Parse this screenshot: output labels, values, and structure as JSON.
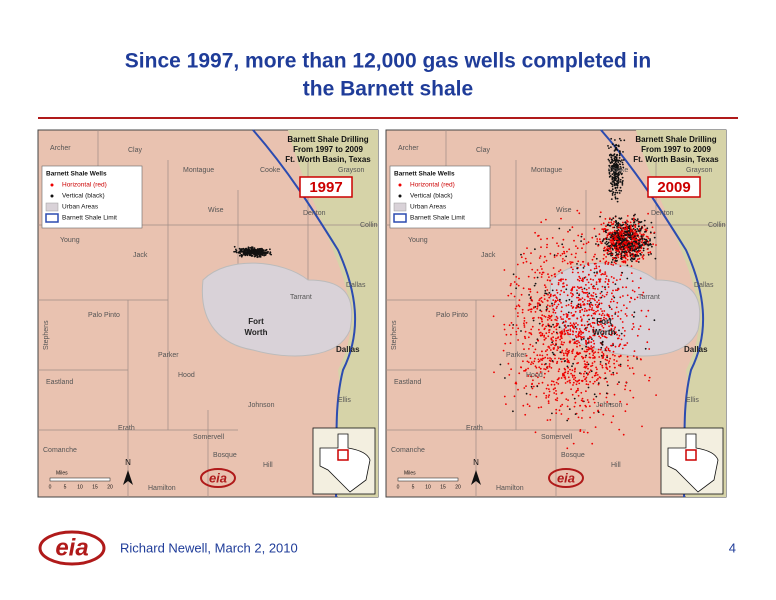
{
  "title_lines": [
    "Since 1997, more than 12,000 gas wells completed in",
    "the Barnett shale"
  ],
  "maps": [
    {
      "year": "1997",
      "heading": [
        "Barnett Shale Drilling",
        "From 1997 to 2009",
        "Ft. Worth Basin, Texas"
      ]
    },
    {
      "year": "2009",
      "heading": [
        "Barnett Shale Drilling",
        "From 1997 to 2009",
        "Ft. Worth Basin, Texas"
      ]
    }
  ],
  "legend": {
    "title": "Barnett Shale Wells",
    "items": [
      "Horizontal (red)",
      "Vertical (black)",
      "Urban Areas",
      "Barnett Shale Limit"
    ]
  },
  "counties": [
    "Archer",
    "Clay",
    "Montague",
    "Cooke",
    "Grayson",
    "Wise",
    "Denton",
    "Collin",
    "Young",
    "Jack",
    "Tarrant",
    "Dallas",
    "Palo Pinto",
    "Parker",
    "Stephens",
    "Eastland",
    "Hood",
    "Johnson",
    "Ellis",
    "Erath",
    "Somervell",
    "Comanche",
    "Bosque",
    "Hill",
    "Hamilton"
  ],
  "cities": [
    "Fort",
    "Worth",
    "Dallas"
  ],
  "scale": {
    "label": "Miles",
    "ticks": [
      "0",
      "5",
      "10",
      "15",
      "20"
    ],
    "north": "N"
  },
  "logo": "eia",
  "footer": {
    "author": "Richard Newell, March 2, 2010",
    "page": "4"
  }
}
